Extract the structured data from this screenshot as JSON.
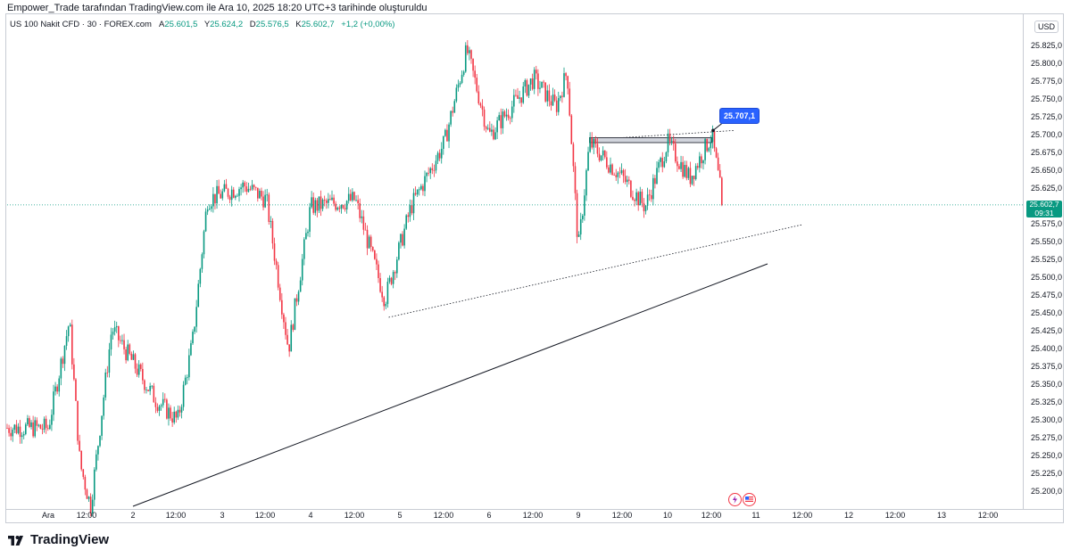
{
  "header": {
    "attribution": "Empower_Trade tarafından TradingView.com ile Ara 10, 2025 18:20 UTC+3 tarihinde oluşturuldu"
  },
  "legend": {
    "symbol": "US 100 Nakit CFD · 30 · FOREX.com",
    "open_label": "A",
    "open": "25.601,5",
    "high_label": "Y",
    "high": "25.624,2",
    "low_label": "D",
    "low": "25.576,5",
    "close_label": "K",
    "close": "25.602,7",
    "change": "+1,2 (+0,00%)"
  },
  "currency": "USD",
  "last_price": {
    "value": "25.602,7",
    "countdown": "09:31"
  },
  "annotation": {
    "label": "25.707,1",
    "value": 25707.1
  },
  "brand": "TradingView",
  "colors": {
    "up": "#089981",
    "down": "#f23645",
    "callout": "#2962ff",
    "trendline": "#131722"
  },
  "icons": [
    "lightning-event-icon",
    "us-flag-event-icon",
    "tradingview-logo-icon"
  ],
  "chart_data": {
    "type": "candlestick",
    "title": "US 100 Nakit CFD · 30 · FOREX.com",
    "ylim": [
      25175,
      25850
    ],
    "y_ticks": [
      "25.825,0",
      "25.800,0",
      "25.775,0",
      "25.750,0",
      "25.725,0",
      "25.700,0",
      "25.675,0",
      "25.650,0",
      "25.625,0",
      "25.600,0",
      "25.575,0",
      "25.550,0",
      "25.525,0",
      "25.500,0",
      "25.475,0",
      "25.450,0",
      "25.425,0",
      "25.400,0",
      "25.375,0",
      "25.350,0",
      "25.325,0",
      "25.300,0",
      "25.275,0",
      "25.250,0",
      "25.225,0",
      "25.200,0"
    ],
    "x_ticks": [
      "Ara",
      "12:00",
      "2",
      "12:00",
      "3",
      "12:00",
      "4",
      "12:00",
      "5",
      "12:00",
      "6",
      "12:00",
      "9",
      "12:00",
      "10",
      "12:00",
      "11",
      "12:00",
      "12",
      "12:00",
      "13",
      "12:00"
    ],
    "price_path": [
      {
        "t": "1 00:00",
        "p": 25290
      },
      {
        "t": "1 06:00",
        "p": 25440
      },
      {
        "t": "1 09:00",
        "p": 25240
      },
      {
        "t": "1 12:00",
        "p": 25180
      },
      {
        "t": "1 18:00",
        "p": 25430
      },
      {
        "t": "2 06:00",
        "p": 25330
      },
      {
        "t": "2 12:00",
        "p": 25300
      },
      {
        "t": "2 16:00",
        "p": 25410
      },
      {
        "t": "2 20:00",
        "p": 25610
      },
      {
        "t": "3 06:00",
        "p": 25630
      },
      {
        "t": "3 12:00",
        "p": 25610
      },
      {
        "t": "3 18:00",
        "p": 25400
      },
      {
        "t": "4 00:00",
        "p": 25600
      },
      {
        "t": "4 12:00",
        "p": 25610
      },
      {
        "t": "4 20:00",
        "p": 25470
      },
      {
        "t": "5 03:00",
        "p": 25600
      },
      {
        "t": "5 12:00",
        "p": 25690
      },
      {
        "t": "5 18:00",
        "p": 25820
      },
      {
        "t": "6 00:00",
        "p": 25700
      },
      {
        "t": "6 12:00",
        "p": 25780
      },
      {
        "t": "6 18:00",
        "p": 25740
      },
      {
        "t": "6 21:00",
        "p": 25790
      },
      {
        "t": "9 00:00",
        "p": 25540
      },
      {
        "t": "9 03:00",
        "p": 25690
      },
      {
        "t": "9 12:00",
        "p": 25640
      },
      {
        "t": "9 18:00",
        "p": 25600
      },
      {
        "t": "10 00:00",
        "p": 25690
      },
      {
        "t": "10 06:00",
        "p": 25640
      },
      {
        "t": "10 12:00",
        "p": 25700
      },
      {
        "t": "10 15:00",
        "p": 25602.7
      }
    ],
    "trendlines": [
      {
        "style": "solid",
        "from": {
          "t": "2 00:00",
          "p": 25180
        },
        "to": {
          "t": "11 03:00",
          "p": 25520
        }
      },
      {
        "style": "dotted",
        "from": {
          "t": "4 21:00",
          "p": 25445
        },
        "to": {
          "t": "11 12:00",
          "p": 25575
        }
      },
      {
        "style": "dotted",
        "from": {
          "t": "9 12:00",
          "p": 25697
        },
        "to": {
          "t": "10 18:00",
          "p": 25707
        }
      }
    ],
    "resistance_zone": {
      "from": "9 03:00",
      "to": "10 12:00",
      "low": 25690,
      "high": 25697
    },
    "last_price": 25602.7
  }
}
